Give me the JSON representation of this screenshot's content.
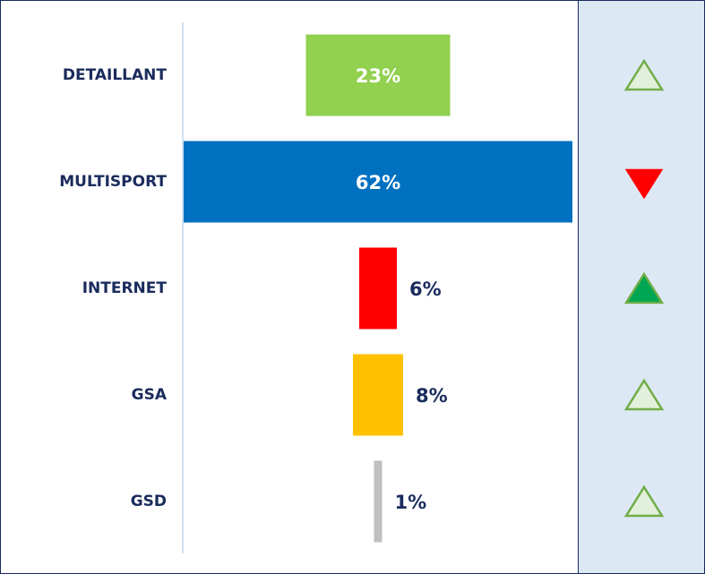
{
  "chart_data": {
    "type": "bar",
    "categories": [
      "DETAILLANT",
      "MULTISPORT",
      "INTERNET",
      "GSA",
      "GSD"
    ],
    "values": [
      23,
      62,
      6,
      8,
      1
    ],
    "value_labels": [
      "23%",
      "62%",
      "6%",
      "8%",
      "1%"
    ],
    "colors": [
      "#92d050",
      "#0070c0",
      "#ff0000",
      "#ffc000",
      "#bfbfbf"
    ],
    "indicators": [
      {
        "direction": "up",
        "filled": false
      },
      {
        "direction": "down",
        "filled": true,
        "color": "#ff0000"
      },
      {
        "direction": "up",
        "filled": true,
        "color": "#00a651"
      },
      {
        "direction": "up",
        "filled": false
      },
      {
        "direction": "up",
        "filled": false
      }
    ]
  }
}
